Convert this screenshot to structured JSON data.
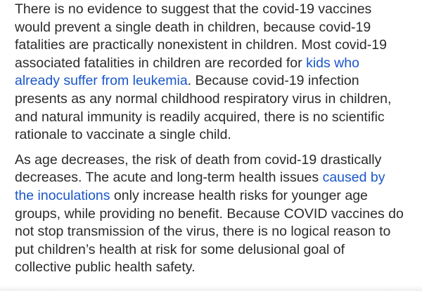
{
  "article": {
    "paragraph1": {
      "l1": "There is no evidence to suggest that the covid-19 vaccines",
      "l2": "would prevent a single death in children, because covid-19",
      "l3": "fatalities are practically nonexistent in children. Most covid-19",
      "l4a": "associated fatalities in children are recorded for ",
      "link1_part1": "kids who",
      "link1_part2": "already suffer from leukemia",
      "l5b": ". Because covid-19 infection",
      "l6": "presents as any normal childhood respiratory virus in children,",
      "l7": "and natural immunity is readily acquired, there is no scientific",
      "l8": "rationale to vaccinate a single child."
    },
    "paragraph2": {
      "l1": "As age decreases, the risk of death from covid-19 drastically",
      "l2a": "decreases. The acute and long-term health issues ",
      "link2_part1": "caused by",
      "link2_part2": "the inoculations",
      "l3b": " only increase health risks for younger age",
      "l4": "groups, while providing no benefit. Because COVID vaccines do",
      "l5": "not stop transmission of the virus, there is no logical reason to",
      "l6": "put children’s health at risk for some delusional goal of",
      "l7": "collective public health safety."
    },
    "colors": {
      "text": "#2b2b2b",
      "link": "#1a57c9",
      "background": "#ffffff"
    }
  }
}
